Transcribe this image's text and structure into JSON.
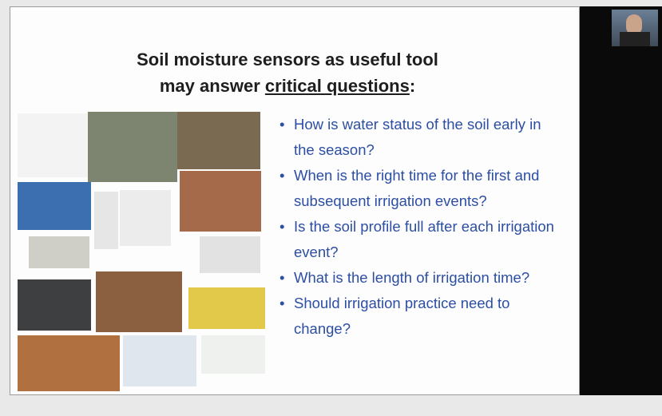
{
  "slide": {
    "title_line1": "Soil moisture sensors as useful tool",
    "title_line2_prefix": "may answer",
    "title_line2_emphasis": "critical questions",
    "title_line2_suffix": ":",
    "bullets": [
      "How is water status of the soil early in the season?",
      "When is the right time for the first and subsequent  irrigation events?",
      "Is the soil profile full after each irrigation event?",
      "What is the length of irrigation time?",
      "Should irrigation practice need to change?"
    ]
  }
}
